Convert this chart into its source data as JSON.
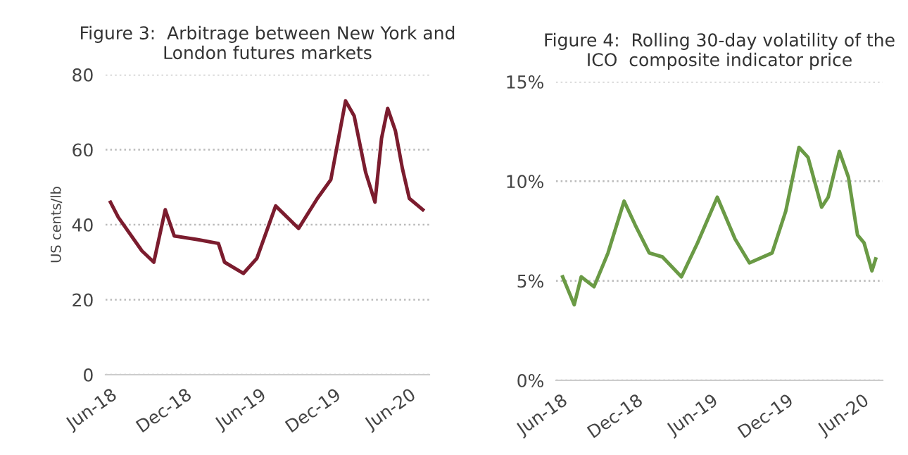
{
  "chart_data": [
    {
      "type": "line",
      "title": "Figure 3:  Arbitrage between New York and\nLondon futures markets",
      "ylabel": "US cents/lb",
      "series": [
        {
          "color": "#7b1c2e",
          "x": [
            "2018-06-01",
            "2018-06-20",
            "2018-08-17",
            "2018-09-15",
            "2018-10-13",
            "2018-11-04",
            "2019-01-01",
            "2019-02-20",
            "2019-03-07",
            "2019-04-22",
            "2019-05-25",
            "2019-07-10",
            "2019-09-04",
            "2019-10-20",
            "2019-11-22",
            "2019-12-28",
            "2020-01-18",
            "2020-02-15",
            "2020-03-09",
            "2020-03-25",
            "2020-04-09",
            "2020-04-28",
            "2020-05-15",
            "2020-06-01",
            "2020-07-04"
          ],
          "values": [
            46,
            42,
            33,
            30,
            44,
            37,
            36,
            35,
            30,
            27,
            31,
            45,
            39,
            47,
            52,
            73,
            69,
            54,
            46,
            63,
            71,
            65,
            55,
            47,
            44
          ]
        }
      ],
      "xlim": [
        "2018-05-20",
        "2020-07-20"
      ],
      "xticks": [
        {
          "value": "2018-06-01",
          "label": "Jun-18"
        },
        {
          "value": "2018-12-01",
          "label": "Dec-18"
        },
        {
          "value": "2019-06-01",
          "label": "Jun-19"
        },
        {
          "value": "2019-12-01",
          "label": "Dec-19"
        },
        {
          "value": "2020-06-01",
          "label": "Jun-20"
        }
      ],
      "ylim": [
        0,
        80
      ],
      "yticks": [
        0,
        20,
        40,
        60,
        80
      ],
      "grid": "y",
      "line_style": "solid"
    },
    {
      "type": "line",
      "title": "Figure 4:  Rolling 30-day volatility of the\nICO  composite indicator price",
      "series": [
        {
          "color": "#6a9a45",
          "x": [
            "2018-06-05",
            "2018-07-03",
            "2018-07-20",
            "2018-08-20",
            "2018-09-23",
            "2018-11-01",
            "2018-11-28",
            "2019-01-01",
            "2019-02-02",
            "2019-03-20",
            "2019-04-28",
            "2019-06-15",
            "2019-07-28",
            "2019-09-01",
            "2019-10-26",
            "2019-11-28",
            "2019-12-30",
            "2020-01-21",
            "2020-02-23",
            "2020-03-10",
            "2020-04-06",
            "2020-04-28",
            "2020-05-20",
            "2020-06-05",
            "2020-06-24",
            "2020-07-03"
          ],
          "values": [
            5.2,
            3.8,
            5.2,
            4.7,
            6.4,
            9.0,
            7.8,
            6.4,
            6.2,
            5.2,
            6.9,
            9.2,
            7.1,
            5.9,
            6.4,
            8.5,
            11.7,
            11.2,
            8.7,
            9.2,
            11.5,
            10.2,
            7.3,
            6.9,
            5.5,
            6.1
          ]
        }
      ],
      "xlim": [
        "2018-05-20",
        "2020-07-20"
      ],
      "xticks": [
        {
          "value": "2018-06-01",
          "label": "Jun-18"
        },
        {
          "value": "2018-12-01",
          "label": "Dec-18"
        },
        {
          "value": "2019-06-01",
          "label": "Jun-19"
        },
        {
          "value": "2019-12-01",
          "label": "Dec-19"
        },
        {
          "value": "2020-06-01",
          "label": "Jun-20"
        }
      ],
      "ylim": [
        0,
        15
      ],
      "yticks": [
        {
          "value": 0,
          "label": "0%"
        },
        {
          "value": 5,
          "label": "5%"
        },
        {
          "value": 10,
          "label": "10%"
        },
        {
          "value": 15,
          "label": "15%"
        }
      ],
      "grid": "y",
      "line_style": "solid"
    }
  ]
}
